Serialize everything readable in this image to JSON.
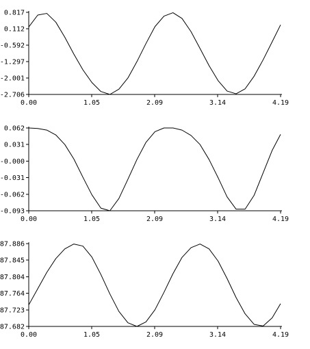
{
  "chart_data": [
    {
      "type": "line",
      "title": "",
      "xlabel": "",
      "ylabel": "",
      "xlim": [
        0,
        4.19
      ],
      "ylim": [
        -2.706,
        0.817
      ],
      "xticks": [
        "0.00",
        "1.05",
        "2.09",
        "3.14",
        "4.19"
      ],
      "yticks": [
        "0.817",
        "0.112",
        "-0.592",
        "-1.297",
        "-2.001",
        "-2.706"
      ],
      "grid": false,
      "legend": "none",
      "series": [
        {
          "x": [
            0.0,
            0.15,
            0.3,
            0.45,
            0.6,
            0.75,
            0.9,
            1.05,
            1.2,
            1.35,
            1.5,
            1.65,
            1.8,
            1.95,
            2.1,
            2.25,
            2.4,
            2.55,
            2.7,
            2.85,
            3.0,
            3.15,
            3.3,
            3.45,
            3.6,
            3.75,
            3.9,
            4.05,
            4.19
          ],
          "y": [
            0.187,
            0.7,
            0.771,
            0.397,
            -0.251,
            -0.975,
            -1.646,
            -2.192,
            -2.58,
            -2.706,
            -2.481,
            -2.0,
            -1.298,
            -0.524,
            0.204,
            0.653,
            0.8,
            0.554,
            -0.013,
            -0.736,
            -1.47,
            -2.113,
            -2.561,
            -2.679,
            -2.464,
            -1.922,
            -1.218,
            -0.448,
            0.28
          ]
        }
      ]
    },
    {
      "type": "line",
      "title": "",
      "xlabel": "",
      "ylabel": "",
      "xlim": [
        0,
        4.19
      ],
      "ylim": [
        -0.093,
        0.062
      ],
      "xticks": [
        "0.00",
        "1.05",
        "2.09",
        "3.14",
        "4.19"
      ],
      "yticks": [
        "0.062",
        "0.031",
        "-0.000",
        "-0.031",
        "-0.062",
        "-0.093"
      ],
      "grid": false,
      "legend": "none",
      "series": [
        {
          "x": [
            0.0,
            0.15,
            0.3,
            0.45,
            0.6,
            0.75,
            0.9,
            1.05,
            1.2,
            1.35,
            1.5,
            1.65,
            1.8,
            1.95,
            2.1,
            2.25,
            2.4,
            2.55,
            2.7,
            2.85,
            3.0,
            3.15,
            3.3,
            3.45,
            3.6,
            3.75,
            3.9,
            4.05,
            4.19
          ],
          "y": [
            0.062,
            0.061,
            0.058,
            0.049,
            0.031,
            0.004,
            -0.03,
            -0.063,
            -0.088,
            -0.093,
            -0.07,
            -0.034,
            0.003,
            0.035,
            0.055,
            0.062,
            0.062,
            0.058,
            0.048,
            0.031,
            0.003,
            -0.031,
            -0.067,
            -0.09,
            -0.09,
            -0.064,
            -0.022,
            0.02,
            0.05
          ]
        }
      ]
    },
    {
      "type": "line",
      "title": "",
      "xlabel": "",
      "ylabel": "",
      "xlim": [
        0,
        4.19
      ],
      "ylim": [
        87.682,
        87.886
      ],
      "xticks": [
        "0.00",
        "1.05",
        "2.09",
        "3.14",
        "4.19"
      ],
      "yticks": [
        "87.886",
        "87.845",
        "87.804",
        "87.764",
        "87.723",
        "87.682"
      ],
      "grid": false,
      "legend": "none",
      "series": [
        {
          "x": [
            0.0,
            0.15,
            0.3,
            0.45,
            0.6,
            0.75,
            0.9,
            1.05,
            1.2,
            1.35,
            1.5,
            1.65,
            1.8,
            1.95,
            2.1,
            2.25,
            2.4,
            2.55,
            2.7,
            2.85,
            3.0,
            3.15,
            3.3,
            3.45,
            3.6,
            3.75,
            3.9,
            4.05,
            4.19
          ],
          "y": [
            87.735,
            87.775,
            87.815,
            87.849,
            87.873,
            87.885,
            87.88,
            87.853,
            87.81,
            87.762,
            87.719,
            87.691,
            87.682,
            87.693,
            87.723,
            87.766,
            87.812,
            87.852,
            87.876,
            87.885,
            87.873,
            87.843,
            87.8,
            87.753,
            87.713,
            87.687,
            87.683,
            87.703,
            87.738
          ]
        }
      ]
    }
  ]
}
